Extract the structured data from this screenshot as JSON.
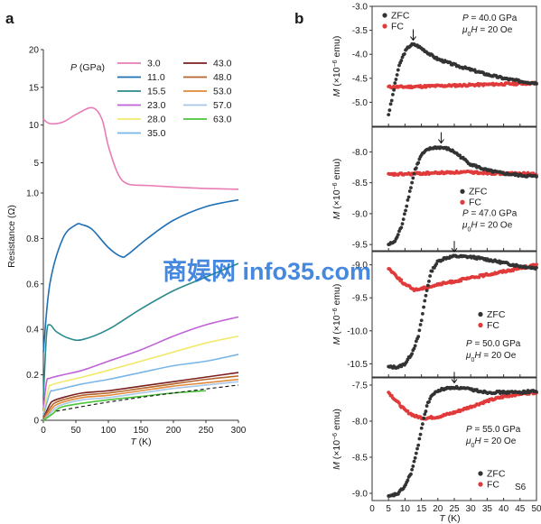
{
  "watermark": "商娱网 info35.com",
  "panel_a": {
    "label": "a",
    "legend_title": "P (GPa)",
    "chart_data": {
      "type": "line",
      "xlabel": "T (K)",
      "ylabel": "Resistance (Ω)",
      "xlim": [
        0,
        300
      ],
      "y_scale": "broken-axis",
      "y_segments": [
        {
          "range": [
            0,
            1.0
          ],
          "ticks": [
            0,
            0.2,
            0.4,
            0.6,
            0.8,
            1.0
          ]
        },
        {
          "range": [
            1.0,
            20
          ],
          "ticks": [
            5,
            10,
            15,
            20
          ]
        }
      ],
      "x_ticks": [
        0,
        50,
        100,
        150,
        200,
        250,
        300
      ],
      "legend_placement": "top-center",
      "series": [
        {
          "name": "3.0",
          "color": "#e87cb4",
          "x": [
            0,
            10,
            30,
            50,
            75,
            90,
            100,
            115,
            130,
            160,
            200,
            250,
            300
          ],
          "y": [
            10.8,
            10.2,
            10.4,
            11.4,
            12.3,
            10.8,
            7.2,
            3.5,
            2.2,
            2.0,
            1.8,
            1.6,
            1.5
          ]
        },
        {
          "name": "11.0",
          "color": "#1f6fb5",
          "x": [
            0,
            10,
            30,
            50,
            60,
            75,
            100,
            120,
            130,
            160,
            200,
            250,
            300
          ],
          "y": [
            0.3,
            0.6,
            0.8,
            0.86,
            0.86,
            0.84,
            0.76,
            0.72,
            0.73,
            0.8,
            0.88,
            0.94,
            0.97
          ]
        },
        {
          "name": "15.5",
          "color": "#2a8a8c",
          "x": [
            0,
            5,
            10,
            20,
            40,
            60,
            100,
            150,
            200,
            250,
            300
          ],
          "y": [
            0.1,
            0.38,
            0.42,
            0.39,
            0.36,
            0.355,
            0.4,
            0.49,
            0.57,
            0.63,
            0.69
          ]
        },
        {
          "name": "23.0",
          "color": "#bf63d6",
          "x": [
            0,
            5,
            10,
            30,
            60,
            100,
            150,
            200,
            250,
            300
          ],
          "y": [
            0.05,
            0.17,
            0.185,
            0.2,
            0.22,
            0.26,
            0.31,
            0.37,
            0.42,
            0.455
          ]
        },
        {
          "name": "28.0",
          "color": "#f2e96a",
          "x": [
            0,
            8,
            12,
            30,
            60,
            100,
            150,
            200,
            250,
            300
          ],
          "y": [
            0.03,
            0.14,
            0.155,
            0.17,
            0.19,
            0.22,
            0.26,
            0.3,
            0.34,
            0.37
          ]
        },
        {
          "name": "35.0",
          "color": "#79b6e8",
          "x": [
            0,
            10,
            15,
            30,
            60,
            100,
            150,
            200,
            250,
            300
          ],
          "y": [
            0.02,
            0.12,
            0.13,
            0.14,
            0.16,
            0.18,
            0.21,
            0.24,
            0.26,
            0.29
          ]
        },
        {
          "name": "43.0",
          "color": "#7a1f1f",
          "x": [
            0,
            10,
            15,
            30,
            60,
            100,
            150,
            200,
            250,
            300
          ],
          "y": [
            0.01,
            0.07,
            0.085,
            0.1,
            0.12,
            0.13,
            0.15,
            0.17,
            0.19,
            0.21
          ]
        },
        {
          "name": "48.0",
          "color": "#b5652a",
          "x": [
            0,
            12,
            17,
            30,
            60,
            100,
            150,
            200,
            250,
            300
          ],
          "y": [
            0.01,
            0.06,
            0.075,
            0.09,
            0.11,
            0.12,
            0.14,
            0.16,
            0.18,
            0.195
          ]
        },
        {
          "name": "53.0",
          "color": "#e38a3a",
          "x": [
            0,
            13,
            18,
            30,
            60,
            100,
            150,
            200,
            250,
            300
          ],
          "y": [
            0.0,
            0.05,
            0.065,
            0.08,
            0.1,
            0.11,
            0.13,
            0.15,
            0.165,
            0.18
          ]
        },
        {
          "name": "57.0",
          "color": "#a8c7e8",
          "x": [
            0,
            14,
            19,
            30,
            60,
            100,
            150,
            200,
            250,
            300
          ],
          "y": [
            0.0,
            0.04,
            0.055,
            0.07,
            0.09,
            0.1,
            0.12,
            0.14,
            0.155,
            0.17
          ]
        },
        {
          "name": "63.0",
          "color": "#4cc43c",
          "x": [
            0,
            15,
            20,
            30,
            60,
            100,
            150,
            200,
            250
          ],
          "y": [
            0.0,
            0.03,
            0.045,
            0.06,
            0.075,
            0.09,
            0.105,
            0.12,
            0.13
          ]
        }
      ],
      "dashed_reference": {
        "color": "#111111",
        "x": [
          20,
          100,
          200,
          300
        ],
        "y": [
          0.04,
          0.08,
          0.12,
          0.155
        ]
      }
    }
  },
  "panel_b": {
    "label": "b",
    "xlabel": "T (K)",
    "ylabel_parts": {
      "M": "M",
      "rest": " (×10",
      "exp": "−6",
      "unit": " emu)"
    },
    "x_ticks": [
      0,
      5,
      10,
      15,
      20,
      25,
      30,
      35,
      40,
      45,
      50
    ],
    "xlim": [
      0,
      50
    ],
    "zfc_label": "ZFC",
    "fc_label": "FC",
    "zfc_color": "#333333",
    "fc_color": "#e03a3a",
    "corner_label": "S6",
    "chart_data": [
      {
        "type": "scatter",
        "pressure": "40.0",
        "field": "20",
        "legend_placement": "top-left",
        "ann_placement": "top-right",
        "ylim": [
          -5.5,
          -3.0
        ],
        "yticks": [
          -5.0,
          -4.5,
          -4.0,
          -3.5,
          -3.0
        ],
        "peak_T": 12.5,
        "zfc": {
          "x": [
            5,
            6,
            7,
            8,
            9,
            10,
            11,
            12,
            13,
            14,
            16,
            18,
            20,
            25,
            30,
            35,
            40,
            45,
            50
          ],
          "y": [
            -5.25,
            -4.95,
            -4.6,
            -4.3,
            -4.1,
            -3.95,
            -3.85,
            -3.8,
            -3.8,
            -3.83,
            -3.92,
            -4.02,
            -4.1,
            -4.22,
            -4.32,
            -4.42,
            -4.5,
            -4.56,
            -4.6
          ]
        },
        "fc": {
          "x": [
            5,
            10,
            15,
            20,
            25,
            30,
            35,
            40,
            45,
            50
          ],
          "y": [
            -4.68,
            -4.68,
            -4.67,
            -4.66,
            -4.65,
            -4.64,
            -4.63,
            -4.62,
            -4.61,
            -4.6
          ]
        }
      },
      {
        "type": "scatter",
        "pressure": "47.0",
        "field": "20",
        "legend_placement": "center-right",
        "ann_placement": "center-right",
        "ylim": [
          -9.6,
          -7.6
        ],
        "yticks": [
          -9.5,
          -9.0,
          -8.5,
          -8.0
        ],
        "peak_T": 21,
        "zfc": {
          "x": [
            5,
            7,
            9,
            11,
            13,
            15,
            17,
            19,
            21,
            23,
            25,
            27,
            30,
            35,
            40,
            45,
            50
          ],
          "y": [
            -9.5,
            -9.45,
            -9.2,
            -8.75,
            -8.3,
            -8.05,
            -7.96,
            -7.93,
            -7.93,
            -7.95,
            -8.0,
            -8.08,
            -8.2,
            -8.3,
            -8.35,
            -8.38,
            -8.4
          ]
        },
        "fc": {
          "x": [
            5,
            10,
            15,
            20,
            25,
            30,
            35,
            40,
            45,
            50
          ],
          "y": [
            -8.37,
            -8.36,
            -8.35,
            -8.34,
            -8.33,
            -8.33,
            -8.34,
            -8.35,
            -8.35,
            -8.36
          ]
        }
      },
      {
        "type": "scatter",
        "pressure": "50.0",
        "field": "20",
        "legend_placement": "center-right",
        "ann_placement": "bottom-right",
        "ylim": [
          -10.7,
          -8.8
        ],
        "yticks": [
          -10.5,
          -10.0,
          -9.5,
          -9.0
        ],
        "peak_T": 25,
        "zfc": {
          "x": [
            5,
            8,
            10,
            12,
            14,
            15,
            16,
            17,
            18,
            20,
            22,
            25,
            30,
            35,
            40,
            45,
            50
          ],
          "y": [
            -10.55,
            -10.55,
            -10.5,
            -10.35,
            -10.1,
            -9.85,
            -9.55,
            -9.3,
            -9.1,
            -8.95,
            -8.9,
            -8.87,
            -8.88,
            -8.92,
            -8.97,
            -9.02,
            -9.05
          ]
        },
        "fc": {
          "x": [
            5,
            8,
            10,
            13,
            16,
            20,
            25,
            30,
            35,
            40,
            45,
            50
          ],
          "y": [
            -9.05,
            -9.2,
            -9.3,
            -9.38,
            -9.35,
            -9.3,
            -9.25,
            -9.2,
            -9.15,
            -9.1,
            -9.05,
            -9.0
          ]
        }
      },
      {
        "type": "scatter",
        "pressure": "55.0",
        "field": "20",
        "legend_placement": "bottom-right",
        "ann_placement": "center-right",
        "ylim": [
          -9.1,
          -7.4
        ],
        "yticks": [
          -9.0,
          -8.5,
          -8.0,
          -7.5
        ],
        "peak_T": 25,
        "zfc": {
          "x": [
            5,
            8,
            10,
            12,
            14,
            15,
            16,
            17,
            18,
            20,
            22,
            25,
            30,
            35,
            40,
            45,
            50
          ],
          "y": [
            -9.05,
            -9.0,
            -8.9,
            -8.7,
            -8.35,
            -8.1,
            -7.9,
            -7.75,
            -7.65,
            -7.58,
            -7.55,
            -7.53,
            -7.56,
            -7.6,
            -7.6,
            -7.6,
            -7.58
          ]
        },
        "fc": {
          "x": [
            5,
            8,
            10,
            13,
            16,
            20,
            25,
            30,
            35,
            40,
            45,
            50
          ],
          "y": [
            -7.6,
            -7.75,
            -7.85,
            -7.93,
            -7.96,
            -7.94,
            -7.88,
            -7.8,
            -7.72,
            -7.66,
            -7.62,
            -7.6
          ]
        }
      }
    ]
  }
}
